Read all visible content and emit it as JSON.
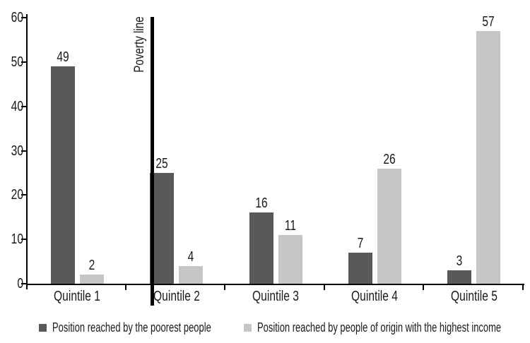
{
  "chart_data": {
    "type": "bar",
    "categories": [
      "Quintile 1",
      "Quintile 2",
      "Quintile 3",
      "Quintile 4",
      "Quintile 5"
    ],
    "series": [
      {
        "name": "Position reached by the poorest people",
        "color": "#595959",
        "values": [
          49,
          25,
          16,
          7,
          3
        ]
      },
      {
        "name": "Position reached by people of origin with the highest income",
        "color": "#c6c6c6",
        "values": [
          2,
          4,
          11,
          26,
          57
        ]
      }
    ],
    "annotation": {
      "label": "Poverty line"
    },
    "title": "",
    "xlabel": "",
    "ylabel": "",
    "ylim": [
      0,
      60
    ],
    "yticks": [
      0,
      10,
      20,
      30,
      40,
      50,
      60
    ],
    "grid": false,
    "legend_position": "bottom",
    "axis_color": "#000000",
    "background_color": "#ffffff"
  }
}
